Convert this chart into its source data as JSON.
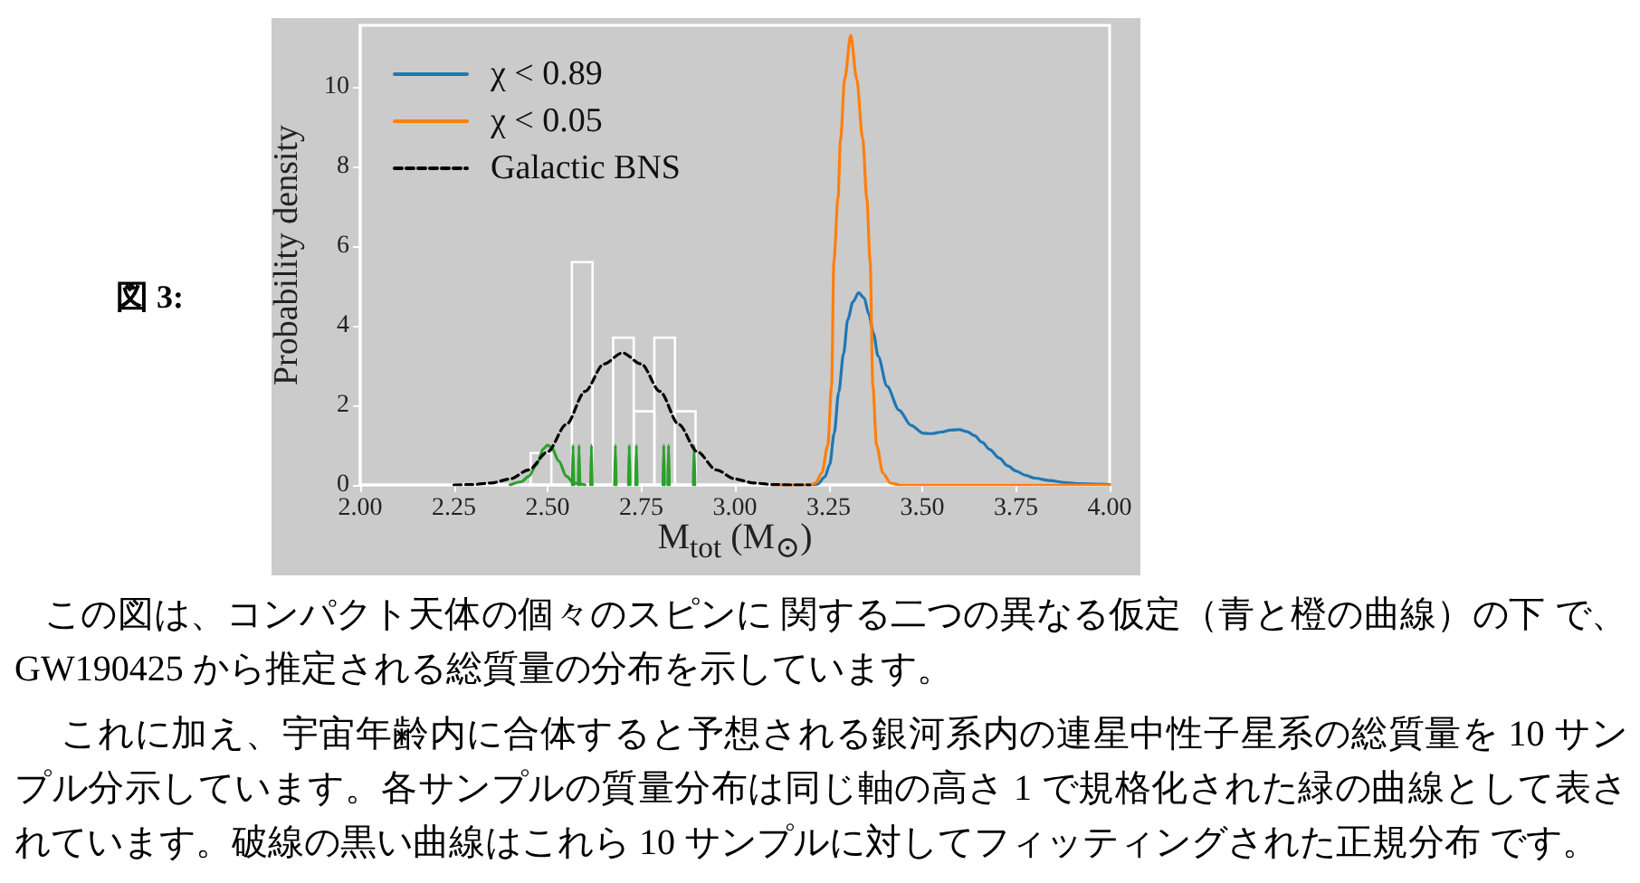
{
  "chart_data": {
    "type": "line",
    "title": "図 3:",
    "xlabel": "M$_{tot}$ (M$_{⊙}$)",
    "ylabel": "Probability density",
    "xlim": [
      2,
      4
    ],
    "ylim": [
      0,
      11.55
    ],
    "xticks": [
      {
        "value": 2,
        "label": "2.00"
      },
      2.25,
      {
        "value": 2.5,
        "label": "2.50"
      },
      2.75,
      {
        "value": 3,
        "label": "3.00"
      },
      3.25,
      {
        "value": 3.5,
        "label": "3.50"
      },
      3.75,
      {
        "value": 4,
        "label": "4.00"
      }
    ],
    "yticks": [
      0,
      2,
      4,
      6,
      8,
      10
    ],
    "legend": "top left",
    "marker": "none",
    "series": [
      {
        "type": "histogram",
        "color": "#ffffff",
        "bins": [
          2.455,
          2.51,
          2.565,
          2.62,
          2.675,
          2.73,
          2.785,
          2.84,
          2.895
        ],
        "values": [
          0.8,
          0,
          5.6,
          0,
          3.7,
          1.85,
          3.7,
          1.85
        ]
      },
      {
        "color": "#2ca02c",
        "x": [
          2.4,
          2.43,
          2.45,
          2.47,
          2.49,
          2.5,
          2.51,
          2.53,
          2.55,
          2.57,
          2.6
        ],
        "values": [
          0,
          0.08,
          0.22,
          0.5,
          0.92,
          1,
          0.95,
          0.6,
          0.22,
          0.05,
          0
        ]
      },
      {
        "color": "#2ca02c",
        "x": [
          2.566,
          2.568,
          2.57
        ],
        "values": [
          0,
          1,
          0
        ]
      },
      {
        "color": "#2ca02c",
        "x": [
          2.582,
          2.584,
          2.586
        ],
        "values": [
          0,
          1,
          0
        ]
      },
      {
        "color": "#2ca02c",
        "x": [
          2.615,
          2.617,
          2.619
        ],
        "values": [
          0,
          1,
          0
        ]
      },
      {
        "color": "#2ca02c",
        "x": [
          2.679,
          2.681,
          2.683
        ],
        "values": [
          0,
          1,
          0
        ]
      },
      {
        "color": "#2ca02c",
        "x": [
          2.716,
          2.718,
          2.72
        ],
        "values": [
          0,
          1,
          0
        ]
      },
      {
        "color": "#2ca02c",
        "x": [
          2.735,
          2.737,
          2.739
        ],
        "values": [
          0,
          1,
          0
        ]
      },
      {
        "color": "#2ca02c",
        "x": [
          2.808,
          2.81,
          2.812
        ],
        "values": [
          0,
          1,
          0
        ]
      },
      {
        "color": "#2ca02c",
        "x": [
          2.821,
          2.823,
          2.825
        ],
        "values": [
          0,
          1,
          0
        ]
      },
      {
        "color": "#2ca02c",
        "x": [
          2.889,
          2.891,
          2.893
        ],
        "values": [
          0,
          1,
          0
        ]
      },
      {
        "name": "χ < 0.89",
        "color": "#1f77b4",
        "x": [
          3.1,
          3.2,
          3.221,
          3.24,
          3.253,
          3.265,
          3.277,
          3.29,
          3.301,
          3.315,
          3.33,
          3.345,
          3.357,
          3.37,
          3.382,
          3.406,
          3.438,
          3.47,
          3.502,
          3.525,
          3.551,
          3.575,
          3.599,
          3.62,
          3.639,
          3.66,
          3.68,
          3.705,
          3.728,
          3.75,
          3.776,
          3.8,
          3.841,
          3.88,
          3.921,
          3.96,
          4
        ],
        "values": [
          0,
          0,
          0.02,
          0.2,
          0.51,
          1.3,
          2.33,
          3.3,
          4.15,
          4.6,
          4.83,
          4.7,
          4.3,
          3.8,
          3.24,
          2.48,
          1.88,
          1.5,
          1.3,
          1.29,
          1.33,
          1.38,
          1.39,
          1.34,
          1.24,
          1.07,
          0.89,
          0.68,
          0.48,
          0.35,
          0.24,
          0.17,
          0.11,
          0.06,
          0.03,
          0.02,
          0.01
        ]
      },
      {
        "name": "χ < 0.05",
        "color": "#ff7f0e",
        "x": [
          3.1,
          3.2,
          3.215,
          3.232,
          3.248,
          3.258,
          3.264,
          3.275,
          3.282,
          3.293,
          3.309,
          3.325,
          3.341,
          3.352,
          3.361,
          3.368,
          3.378,
          3.395,
          3.415,
          3.44,
          4
        ],
        "values": [
          0,
          0,
          0.05,
          0.3,
          1,
          2.5,
          5.6,
          7.2,
          8.7,
          10.2,
          11.3,
          10.2,
          8.7,
          7.2,
          5.6,
          2.5,
          1,
          0.3,
          0.05,
          0,
          0
        ]
      },
      {
        "name": "Galactic BNS",
        "color": "#000000",
        "line_style": "dashed",
        "x": [
          2.25,
          2.3,
          2.35,
          2.4,
          2.45,
          2.5,
          2.55,
          2.6,
          2.65,
          2.7,
          2.75,
          2.8,
          2.85,
          2.9,
          2.95,
          3,
          3.05,
          3.1,
          3.15,
          3.2
        ],
        "values": [
          0,
          0.01,
          0.05,
          0.15,
          0.38,
          0.83,
          1.52,
          2.35,
          3.04,
          3.32,
          3.04,
          2.35,
          1.52,
          0.83,
          0.38,
          0.15,
          0.05,
          0.01,
          0,
          0
        ]
      }
    ],
    "annotations": [
      "この図は、コンパクト天体の個々のスピンに 関する二つの異なる仮定（青と橙の曲線）の下 で、GW190425 から推定される総質量の分布を示しています。",
      "これに加え、宇宙年齢内に合体すると予想される銀河系内の連星中性子星系の総質量を 10 サンプル分示しています。各サンプルの質量分布は同じ軸の高さ 1 で規格化された緑の曲線として表されています。破線の黒い曲線はこれら 10 サンプルに対してフィッティングされた正規分布 です。"
    ]
  }
}
